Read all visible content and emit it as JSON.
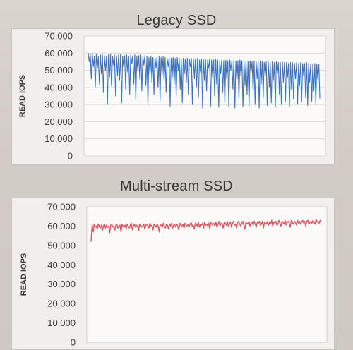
{
  "chart_data": [
    {
      "type": "line",
      "title": "Legacy SSD",
      "ylabel": "READ IOPS",
      "xlabel": "",
      "ylim": [
        0,
        70000
      ],
      "yticks": [
        "70,000",
        "60,000",
        "50,000",
        "40,000",
        "30,000",
        "20,000",
        "10,000",
        "0"
      ],
      "grid": true,
      "legend": "none",
      "color": "#3a72c6",
      "series": [
        {
          "values": [
            60000,
            55000,
            59500,
            45000,
            60000,
            52000,
            58000,
            40000,
            59500,
            51000,
            58000,
            42000,
            59000,
            48000,
            59000,
            37000,
            58500,
            50000,
            58000,
            30000,
            59000,
            46000,
            59500,
            41000,
            58000,
            53000,
            59000,
            35000,
            58500,
            47000,
            59000,
            44000,
            59500,
            31000,
            58000,
            52000,
            58500,
            39000,
            59000,
            49000,
            58000,
            36000,
            59000,
            54000,
            58500,
            42000,
            59000,
            33000,
            58000,
            50000,
            58500,
            45000,
            59000,
            38000,
            58000,
            53000,
            58500,
            41000,
            58000,
            30000,
            57500,
            48000,
            58000,
            43000,
            57500,
            36000,
            58000,
            51000,
            57500,
            40000,
            58000,
            32000,
            57500,
            47000,
            58000,
            44000,
            57500,
            37000,
            57000,
            52000,
            57500,
            29000,
            57000,
            46000,
            57500,
            42000,
            57000,
            35000,
            57500,
            50000,
            57000,
            39000,
            56500,
            31000,
            57000,
            48000,
            56500,
            43000,
            57000,
            36000,
            56500,
            52000,
            57000,
            30000,
            56500,
            45000,
            56500,
            40000,
            57000,
            34000,
            56000,
            49000,
            56500,
            28000,
            56000,
            44000,
            56500,
            38000,
            56000,
            51000,
            56500,
            29000,
            56000,
            46000,
            56000,
            35000,
            56500,
            42000,
            56000,
            28500,
            55500,
            48000,
            56000,
            37000,
            55500,
            31000,
            56000,
            45000,
            55500,
            29000,
            56000,
            50000,
            55500,
            39000,
            56000,
            28000,
            55500,
            44000,
            55500,
            33000,
            56000,
            47000,
            55500,
            28500,
            55000,
            41000,
            55500,
            36000,
            55000,
            29000,
            55500,
            49000,
            55000,
            38000,
            55500,
            30000,
            55000,
            45000,
            55000,
            28000,
            55500,
            42000,
            55000,
            34000,
            54500,
            47000,
            55000,
            29500,
            55000,
            40000,
            54500,
            31000,
            55000,
            44000,
            54500,
            28500,
            55000,
            48000,
            54500,
            36000,
            54500,
            30000,
            55000,
            43000,
            54500,
            32000,
            54500,
            46000,
            54000,
            29000,
            54500,
            39000,
            54500,
            33000,
            54000,
            45000,
            54500,
            30000,
            54000,
            41000,
            54500,
            31500,
            54000,
            47000,
            54000,
            34000,
            54500,
            29500,
            54000,
            43000,
            54000,
            32000,
            53500,
            38000,
            54000,
            30000,
            53500,
            45000,
            53500,
            33500
          ]
        }
      ]
    },
    {
      "type": "line",
      "title": "Multi-stream SSD",
      "ylabel": "READ IOPS",
      "xlabel": "",
      "ylim": [
        0,
        70000
      ],
      "yticks": [
        "70,000",
        "60,000",
        "50,000",
        "40,000",
        "30,000",
        "20,000",
        "10,000",
        "0"
      ],
      "grid": false,
      "legend": "none",
      "color": "#e0525e",
      "series": [
        {
          "values": [
            52000,
            60500,
            57000,
            61000,
            59500,
            60000,
            58500,
            61000,
            60000,
            59000,
            60500,
            57500,
            60000,
            61000,
            59000,
            60500,
            59500,
            60000,
            56500,
            60500,
            61000,
            59500,
            60000,
            58000,
            60500,
            61000,
            59000,
            60000,
            60500,
            57000,
            61000,
            60000,
            59500,
            60500,
            58500,
            61000,
            60000,
            59000,
            60500,
            61500,
            58000,
            60000,
            61000,
            59500,
            60500,
            60000,
            57500,
            61000,
            60500,
            59500,
            60000,
            61000,
            58500,
            60500,
            61000,
            60000,
            59000,
            61500,
            60000,
            60500,
            58000,
            61000,
            60500,
            59500,
            61000,
            60000,
            57000,
            61000,
            60500,
            59500,
            61500,
            60000,
            59000,
            61000,
            60500,
            58500,
            61000,
            60000,
            61500,
            59000,
            60500,
            61000,
            59500,
            61000,
            60000,
            58000,
            61500,
            60500,
            60000,
            61000,
            59000,
            61500,
            60500,
            60000,
            61000,
            59500,
            61000,
            62000,
            60000,
            60500,
            58500,
            61500,
            61000,
            60000,
            62000,
            59500,
            61000,
            60500,
            61500,
            59000,
            62000,
            60500,
            61000,
            60000,
            61500,
            58500,
            62000,
            61000,
            60500,
            61500,
            60000,
            62000,
            59500,
            61000,
            62500,
            60000,
            61500,
            61000,
            59000,
            62000,
            61500,
            60500,
            62500,
            60000,
            61000,
            62000,
            59500,
            61500,
            62500,
            60500,
            61000,
            59000,
            62000,
            62500,
            61000,
            60000,
            61500,
            62500,
            60500,
            58500,
            62000,
            61500,
            61000,
            62500,
            60000,
            61500,
            62000,
            60500,
            62500,
            61000,
            59500,
            62000,
            61500,
            62500,
            60500,
            61000,
            62500,
            59000,
            62000,
            61500,
            61000,
            62500,
            60500,
            62000,
            61000,
            63000,
            60000,
            62000,
            61500,
            62500,
            60500,
            61000,
            63000,
            61500,
            60000,
            62500,
            62000,
            61000,
            63000,
            60500,
            62000,
            62500,
            61500,
            59500,
            63000,
            62000,
            61000,
            62500,
            62000,
            60500,
            63000,
            61500,
            62500,
            61000,
            62000,
            63000,
            61500,
            62500,
            60000,
            62500,
            63000,
            61000,
            62000,
            62500,
            61500,
            63000,
            62000,
            61000,
            63500,
            62000,
            62500,
            61500,
            63000,
            62000
          ]
        }
      ]
    }
  ]
}
